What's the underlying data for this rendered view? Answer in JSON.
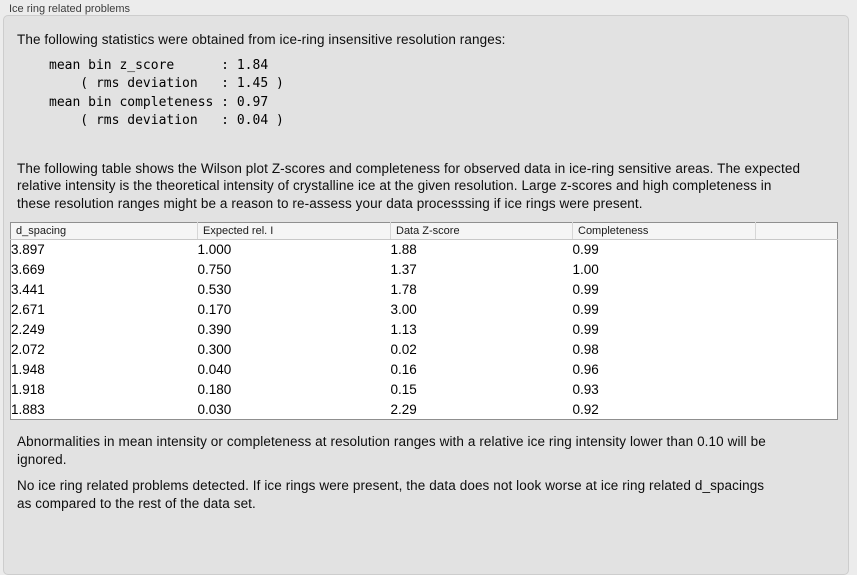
{
  "group": {
    "title": "Ice ring related problems"
  },
  "stats": {
    "intro": "The following statistics were obtained from ice-ring insensitive resolution ranges:",
    "block": "mean bin z_score      : 1.84\n    ( rms deviation   : 1.45 )\nmean bin completeness : 0.97\n    ( rms deviation   : 0.04 )",
    "mean_bin_z_score": 1.84,
    "z_score_rms_deviation": 1.45,
    "mean_bin_completeness": 0.97,
    "completeness_rms_deviation": 0.04
  },
  "table_intro": "The following table shows the Wilson plot Z-scores and completeness for observed data in ice-ring sensitive areas. The expected relative intensity is the theoretical intensity of crystalline ice at the given resolution. Large z-scores and high completeness in these resolution ranges might be a reason to re-assess your data processsing if ice rings were present.",
  "table": {
    "columns": [
      "d_spacing",
      "Expected rel. I",
      "Data Z-score",
      "Completeness",
      ""
    ],
    "rows": [
      [
        "3.897",
        "1.000",
        "1.88",
        "0.99",
        ""
      ],
      [
        "3.669",
        "0.750",
        "1.37",
        "1.00",
        ""
      ],
      [
        "3.441",
        "0.530",
        "1.78",
        "0.99",
        ""
      ],
      [
        "2.671",
        "0.170",
        "3.00",
        "0.99",
        ""
      ],
      [
        "2.249",
        "0.390",
        "1.13",
        "0.99",
        ""
      ],
      [
        "2.072",
        "0.300",
        "0.02",
        "0.98",
        ""
      ],
      [
        "1.948",
        "0.040",
        "0.16",
        "0.96",
        ""
      ],
      [
        "1.918",
        "0.180",
        "0.15",
        "0.93",
        ""
      ],
      [
        "1.883",
        "0.030",
        "2.29",
        "0.92",
        ""
      ]
    ]
  },
  "notes": {
    "abnormalities": "Abnormalities in mean intensity or completeness at resolution ranges with a relative ice ring intensity lower than 0.10 will be ignored.",
    "conclusion": "No ice ring related problems detected. If ice rings were present, the data does not look worse at ice ring related d_spacings as compared to the rest of the data set."
  },
  "colors": {
    "page_background": "#ececec",
    "groupbox_background": "#e2e2e2",
    "groupbox_border": "#cdcdcd",
    "table_border": "#8f8f8f",
    "table_header_background": "#f5f5f5",
    "table_body_background": "#ffffff",
    "text": "#0d0d0d"
  }
}
